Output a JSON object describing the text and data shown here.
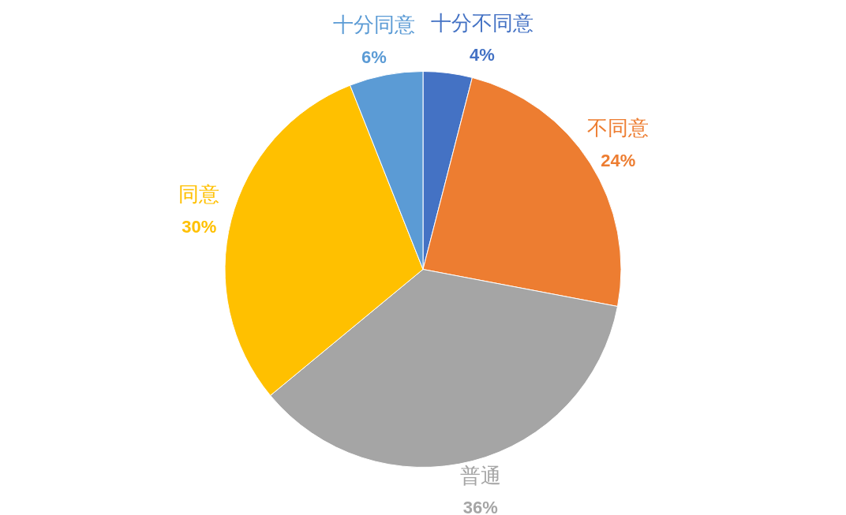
{
  "chart_data": {
    "type": "pie",
    "categories": [
      "十分不同意",
      "不同意",
      "普通",
      "同意",
      "十分同意"
    ],
    "values": [
      4,
      24,
      36,
      30,
      6
    ],
    "colors": [
      "#4472c4",
      "#ed7d31",
      "#a5a5a5",
      "#ffc000",
      "#5b9bd5"
    ],
    "value_labels": [
      "4%",
      "24%",
      "36%",
      "30%",
      "6%"
    ],
    "legend": false
  }
}
